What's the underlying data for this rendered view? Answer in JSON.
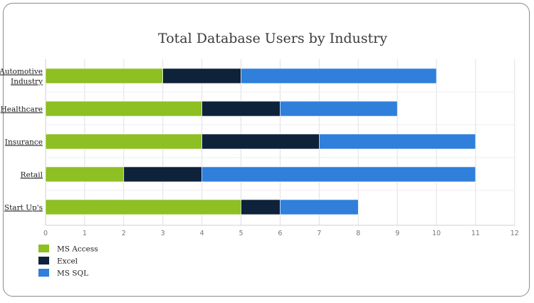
{
  "chart_data": {
    "type": "bar",
    "orientation": "horizontal",
    "stacked": true,
    "title": "Total Database Users by Industry",
    "categories": [
      [
        "Automotive",
        "Industry"
      ],
      [
        "Healthcare"
      ],
      [
        "Insurance"
      ],
      [
        "Retail"
      ],
      [
        "Start Up's"
      ]
    ],
    "series": [
      {
        "name": "MS Access",
        "color": "#8ebf23",
        "values": [
          3,
          4,
          4,
          2,
          5
        ]
      },
      {
        "name": "Excel",
        "color": "#0e223a",
        "values": [
          2,
          2,
          3,
          2,
          1
        ]
      },
      {
        "name": "MS SQL",
        "color": "#2f7fdb",
        "values": [
          5,
          3,
          4,
          7,
          2
        ]
      }
    ],
    "xlim": [
      0,
      12
    ],
    "xticks": [
      0,
      1,
      2,
      3,
      4,
      5,
      6,
      7,
      8,
      9,
      10,
      11,
      12
    ],
    "grid": true,
    "legend": "bottom-left"
  }
}
